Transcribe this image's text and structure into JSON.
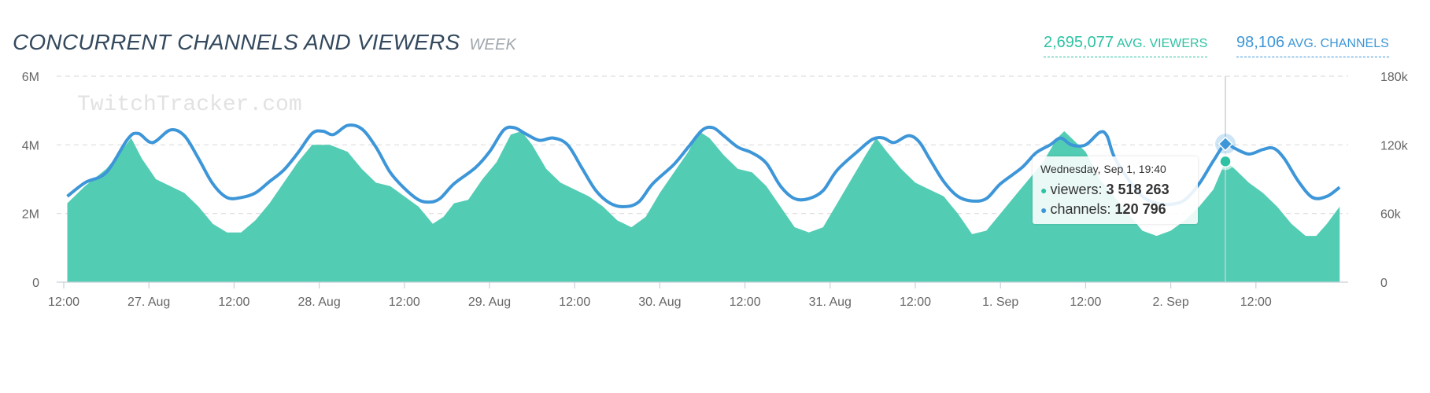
{
  "header": {
    "title": "CONCURRENT CHANNELS AND VIEWERS",
    "period": "WEEK",
    "avg_viewers_value": "2,695,077",
    "avg_viewers_label": "AVG. VIEWERS",
    "avg_channels_value": "98,106",
    "avg_channels_label": "AVG. CHANNELS"
  },
  "watermark": "TwitchTracker.com",
  "tooltip": {
    "date": "Wednesday, Sep 1, 19:40",
    "viewers_label": "viewers:",
    "viewers_value": "3 518 263",
    "channels_label": "channels:",
    "channels_value": "120 796"
  },
  "colors": {
    "viewers": "#52cdb4",
    "channels": "#3d96d8",
    "grid": "#dddddd"
  },
  "chart_data": {
    "type": "area",
    "x_unit": "hours since 26 Aug 12:00",
    "x_ticks": [
      "12:00",
      "27. Aug",
      "12:00",
      "28. Aug",
      "12:00",
      "29. Aug",
      "12:00",
      "30. Aug",
      "12:00",
      "31. Aug",
      "12:00",
      "1. Sep",
      "12:00",
      "2. Sep",
      "12:00"
    ],
    "y_left": {
      "ticks": [
        "0",
        "2M",
        "4M",
        "6M"
      ],
      "min": 0,
      "max": 6000000
    },
    "y_right": {
      "ticks": [
        "0",
        "60k",
        "120k",
        "180k"
      ],
      "min": 0,
      "max": 180000
    },
    "grid": true,
    "series": [
      {
        "name": "viewers",
        "axis": "left",
        "render": "area",
        "points": [
          [
            0.5,
            2300000
          ],
          [
            3,
            2800000
          ],
          [
            6,
            3300000
          ],
          [
            8,
            3800000
          ],
          [
            9.5,
            4200000
          ],
          [
            11,
            3600000
          ],
          [
            13,
            3000000
          ],
          [
            15,
            2800000
          ],
          [
            17,
            2600000
          ],
          [
            19,
            2200000
          ],
          [
            21,
            1700000
          ],
          [
            23,
            1450000
          ],
          [
            25,
            1450000
          ],
          [
            27,
            1800000
          ],
          [
            29,
            2300000
          ],
          [
            31,
            2900000
          ],
          [
            33,
            3500000
          ],
          [
            35,
            4000000
          ],
          [
            37.5,
            4000000
          ],
          [
            40,
            3800000
          ],
          [
            42,
            3300000
          ],
          [
            44,
            2900000
          ],
          [
            46,
            2800000
          ],
          [
            48,
            2500000
          ],
          [
            50,
            2200000
          ],
          [
            52,
            1700000
          ],
          [
            53.5,
            1900000
          ],
          [
            55,
            2300000
          ],
          [
            57,
            2400000
          ],
          [
            59,
            3000000
          ],
          [
            61,
            3500000
          ],
          [
            63,
            4300000
          ],
          [
            64.5,
            4400000
          ],
          [
            66,
            4000000
          ],
          [
            68,
            3300000
          ],
          [
            70,
            2900000
          ],
          [
            72,
            2700000
          ],
          [
            74,
            2500000
          ],
          [
            76,
            2200000
          ],
          [
            78,
            1800000
          ],
          [
            80,
            1600000
          ],
          [
            82,
            1900000
          ],
          [
            84,
            2600000
          ],
          [
            86,
            3200000
          ],
          [
            88,
            3800000
          ],
          [
            89.5,
            4400000
          ],
          [
            91,
            4200000
          ],
          [
            93,
            3700000
          ],
          [
            95,
            3300000
          ],
          [
            97,
            3200000
          ],
          [
            99,
            2800000
          ],
          [
            101,
            2200000
          ],
          [
            103,
            1600000
          ],
          [
            105,
            1450000
          ],
          [
            107,
            1600000
          ],
          [
            109,
            2300000
          ],
          [
            111,
            3000000
          ],
          [
            113,
            3700000
          ],
          [
            114.5,
            4200000
          ],
          [
            116,
            3800000
          ],
          [
            118,
            3300000
          ],
          [
            120,
            2900000
          ],
          [
            122,
            2700000
          ],
          [
            124,
            2500000
          ],
          [
            126,
            2000000
          ],
          [
            128,
            1400000
          ],
          [
            130,
            1500000
          ],
          [
            132,
            2000000
          ],
          [
            134,
            2500000
          ],
          [
            136,
            3000000
          ],
          [
            138,
            3500000
          ],
          [
            140,
            4200000
          ],
          [
            141,
            4400000
          ],
          [
            142,
            4200000
          ],
          [
            144,
            3800000
          ],
          [
            146,
            3000000
          ],
          [
            148,
            2500000
          ],
          [
            150,
            2000000
          ],
          [
            152,
            1500000
          ],
          [
            154,
            1350000
          ],
          [
            156,
            1500000
          ],
          [
            158,
            1800000
          ],
          [
            160,
            2200000
          ],
          [
            162,
            2700000
          ],
          [
            163.7,
            3518263
          ],
          [
            165,
            3300000
          ],
          [
            167,
            2900000
          ],
          [
            169,
            2600000
          ],
          [
            171,
            2200000
          ],
          [
            173,
            1700000
          ],
          [
            175,
            1350000
          ],
          [
            176.5,
            1350000
          ],
          [
            178,
            1700000
          ],
          [
            179.8,
            2200000
          ]
        ]
      },
      {
        "name": "channels",
        "axis": "right",
        "render": "line",
        "points": [
          [
            0.5,
            75000
          ],
          [
            3,
            87000
          ],
          [
            6,
            96000
          ],
          [
            9,
            125000
          ],
          [
            10.5,
            130000
          ],
          [
            12.5,
            122000
          ],
          [
            15,
            133000
          ],
          [
            17,
            128000
          ],
          [
            19,
            108000
          ],
          [
            21,
            86000
          ],
          [
            23,
            74000
          ],
          [
            25,
            74000
          ],
          [
            27,
            78000
          ],
          [
            29,
            88000
          ],
          [
            31,
            98000
          ],
          [
            33,
            113000
          ],
          [
            35,
            130000
          ],
          [
            36.5,
            132000
          ],
          [
            38,
            129000
          ],
          [
            40,
            137000
          ],
          [
            42,
            134000
          ],
          [
            44,
            118000
          ],
          [
            46,
            96000
          ],
          [
            48,
            82000
          ],
          [
            50,
            72000
          ],
          [
            51.5,
            70000
          ],
          [
            53,
            73000
          ],
          [
            55,
            86000
          ],
          [
            58,
            100000
          ],
          [
            60,
            114000
          ],
          [
            62,
            133000
          ],
          [
            63.5,
            135000
          ],
          [
            65,
            130000
          ],
          [
            67,
            124000
          ],
          [
            69,
            126000
          ],
          [
            71,
            120000
          ],
          [
            73,
            100000
          ],
          [
            75,
            80000
          ],
          [
            77,
            69000
          ],
          [
            79,
            66000
          ],
          [
            81,
            70000
          ],
          [
            83,
            86000
          ],
          [
            86,
            103000
          ],
          [
            88,
            118000
          ],
          [
            90,
            133000
          ],
          [
            91.5,
            135000
          ],
          [
            93,
            128000
          ],
          [
            95,
            118000
          ],
          [
            97,
            113000
          ],
          [
            99,
            104000
          ],
          [
            101,
            84000
          ],
          [
            103,
            73000
          ],
          [
            105,
            73000
          ],
          [
            107,
            80000
          ],
          [
            109,
            98000
          ],
          [
            112,
            115000
          ],
          [
            114,
            125000
          ],
          [
            115.5,
            126000
          ],
          [
            117,
            122000
          ],
          [
            119,
            128000
          ],
          [
            120.5,
            123000
          ],
          [
            122,
            108000
          ],
          [
            124,
            88000
          ],
          [
            126,
            75000
          ],
          [
            128,
            71000
          ],
          [
            130,
            73000
          ],
          [
            132,
            86000
          ],
          [
            135,
            100000
          ],
          [
            137,
            113000
          ],
          [
            139,
            120000
          ],
          [
            140.5,
            126000
          ],
          [
            142,
            120000
          ],
          [
            144,
            120000
          ],
          [
            146,
            131000
          ],
          [
            147,
            128000
          ],
          [
            148,
            110000
          ],
          [
            150,
            90000
          ],
          [
            152,
            75000
          ],
          [
            154,
            69000
          ],
          [
            156,
            68000
          ],
          [
            158,
            72000
          ],
          [
            160,
            86000
          ],
          [
            162,
            106000
          ],
          [
            163.7,
            120796
          ],
          [
            165,
            117000
          ],
          [
            167,
            112000
          ],
          [
            169,
            116000
          ],
          [
            170.5,
            117000
          ],
          [
            172,
            108000
          ],
          [
            174,
            88000
          ],
          [
            176,
            74000
          ],
          [
            178,
            75000
          ],
          [
            179.8,
            83000
          ]
        ]
      }
    ]
  }
}
